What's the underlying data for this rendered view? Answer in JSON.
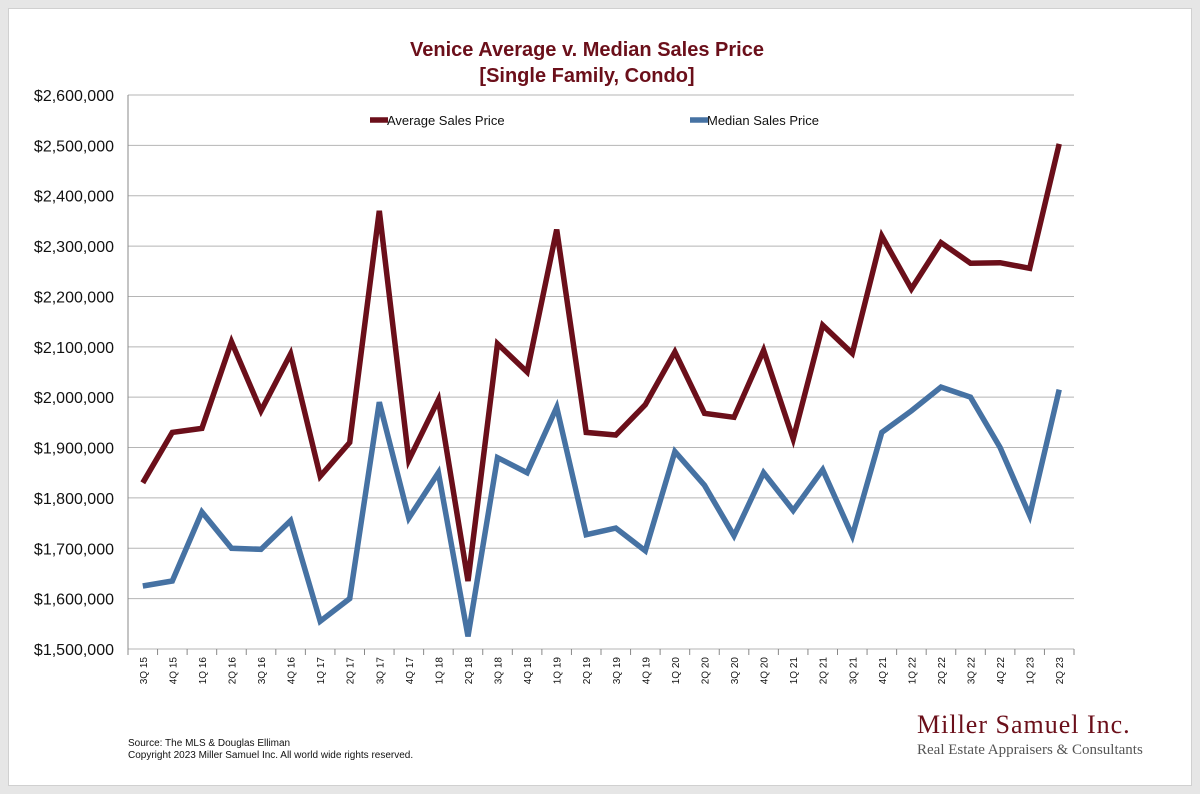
{
  "chart_data": {
    "type": "line",
    "title_line1": "Venice Average v. Median Sales Price",
    "title_line2": "[Single Family, Condo]",
    "xlabel": "",
    "ylabel": "",
    "ylim": [
      1500000,
      2600000
    ],
    "ytick_step": 100000,
    "grid": true,
    "legend_placement": "top",
    "categories": [
      "3Q 15",
      "4Q 15",
      "1Q 16",
      "2Q 16",
      "3Q 16",
      "4Q 16",
      "1Q 17",
      "2Q 17",
      "3Q 17",
      "4Q 17",
      "1Q 18",
      "2Q 18",
      "3Q 18",
      "4Q 18",
      "1Q 19",
      "2Q 19",
      "3Q 19",
      "4Q 19",
      "1Q 20",
      "2Q 20",
      "3Q 20",
      "4Q 20",
      "1Q 21",
      "2Q 21",
      "3Q 21",
      "4Q 21",
      "1Q 22",
      "2Q 22",
      "3Q 22",
      "4Q 22",
      "1Q 23",
      "2Q 23"
    ],
    "series": [
      {
        "name": "Average Sales Price",
        "color": "#6b0f1a",
        "values": [
          1830000,
          1930000,
          1938000,
          2110000,
          1973000,
          2086000,
          1843000,
          1910000,
          2370000,
          1875000,
          1995000,
          1635000,
          2106000,
          2050000,
          2333000,
          1930000,
          1925000,
          1985000,
          2090000,
          1968000,
          1960000,
          2093000,
          1917000,
          2143000,
          2087000,
          2320000,
          2215000,
          2307000,
          2266000,
          2267000,
          2256000,
          2503000
        ]
      },
      {
        "name": "Median Sales Price",
        "color": "#4672a3",
        "values": [
          1625000,
          1635000,
          1772000,
          1700000,
          1698000,
          1755000,
          1555000,
          1600000,
          1990000,
          1760000,
          1850000,
          1525000,
          1880000,
          1850000,
          1980000,
          1727000,
          1740000,
          1695000,
          1892000,
          1825000,
          1725000,
          1850000,
          1775000,
          1856000,
          1725000,
          1930000,
          1973000,
          2020000,
          2000000,
          1900000,
          1765000,
          2015000
        ]
      }
    ]
  },
  "source_line1": "Source: The MLS & Douglas Elliman",
  "source_line2": "Copyright 2023 Miller Samuel Inc.  All world wide rights reserved.",
  "brand_name": "Miller Samuel Inc.",
  "brand_tagline": "Real Estate Appraisers & Consultants"
}
